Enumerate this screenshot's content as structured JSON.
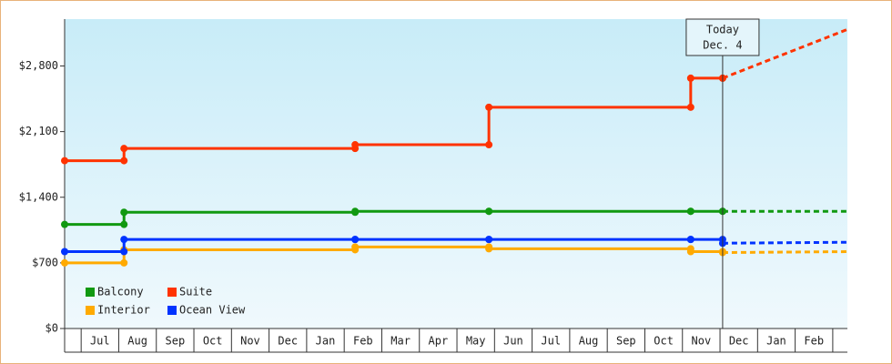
{
  "chart_data": {
    "type": "step-line",
    "ylim": [
      0,
      3300
    ],
    "yticks": [
      {
        "value": 0,
        "label": "$0"
      },
      {
        "value": 700,
        "label": "$700"
      },
      {
        "value": 1400,
        "label": "$1,400"
      },
      {
        "value": 2100,
        "label": "$2,100"
      },
      {
        "value": 2800,
        "label": "$2,800"
      }
    ],
    "xlim": [
      -0.44,
      20.39
    ],
    "xticks": [
      {
        "value": 0.5,
        "label": "Jul"
      },
      {
        "value": 1.5,
        "label": "Aug"
      },
      {
        "value": 2.5,
        "label": "Sep"
      },
      {
        "value": 3.5,
        "label": "Oct"
      },
      {
        "value": 4.5,
        "label": "Nov"
      },
      {
        "value": 5.5,
        "label": "Dec"
      },
      {
        "value": 6.5,
        "label": "Jan"
      },
      {
        "value": 7.5,
        "label": "Feb"
      },
      {
        "value": 8.5,
        "label": "Mar"
      },
      {
        "value": 9.5,
        "label": "Apr"
      },
      {
        "value": 10.5,
        "label": "May"
      },
      {
        "value": 11.5,
        "label": "Jun"
      },
      {
        "value": 12.5,
        "label": "Jul"
      },
      {
        "value": 13.5,
        "label": "Aug"
      },
      {
        "value": 14.5,
        "label": "Sep"
      },
      {
        "value": 15.5,
        "label": "Oct"
      },
      {
        "value": 16.5,
        "label": "Nov"
      },
      {
        "value": 17.5,
        "label": "Dec"
      },
      {
        "value": 18.5,
        "label": "Jan"
      },
      {
        "value": 19.5,
        "label": "Feb"
      }
    ],
    "legend": "bottom-left",
    "series": [
      {
        "name": "Balcony",
        "color": "#119911",
        "x": [
          -0.44,
          1.14,
          7.29,
          10.85,
          16.22,
          17.07
        ],
        "values": [
          1110,
          1240,
          1250,
          1250,
          1250,
          1250
        ],
        "projection_x": [
          17.07,
          20.39
        ],
        "projection_values": [
          1250,
          1250
        ]
      },
      {
        "name": "Suite",
        "color": "#ff3300",
        "x": [
          -0.44,
          1.14,
          7.29,
          10.85,
          16.22,
          17.07
        ],
        "values": [
          1790,
          1920,
          1960,
          2360,
          2670,
          2670
        ],
        "projection_x": [
          17.07,
          20.39
        ],
        "projection_values": [
          2670,
          3190
        ]
      },
      {
        "name": "Interior",
        "color": "#ffaa00",
        "x": [
          -0.44,
          1.14,
          7.29,
          10.85,
          16.22,
          17.07
        ],
        "values": [
          700,
          840,
          870,
          850,
          820,
          810
        ],
        "projection_x": [
          17.07,
          20.39
        ],
        "projection_values": [
          810,
          820
        ]
      },
      {
        "name": "Ocean View",
        "color": "#0033ff",
        "x": [
          -0.44,
          1.14,
          7.29,
          10.85,
          16.22,
          17.07
        ],
        "values": [
          820,
          950,
          950,
          950,
          950,
          910
        ],
        "projection_x": [
          17.07,
          20.39
        ],
        "projection_values": [
          910,
          920
        ]
      }
    ],
    "annotation": {
      "x": 17.07,
      "lines": [
        "Today",
        "Dec. 4"
      ]
    }
  }
}
